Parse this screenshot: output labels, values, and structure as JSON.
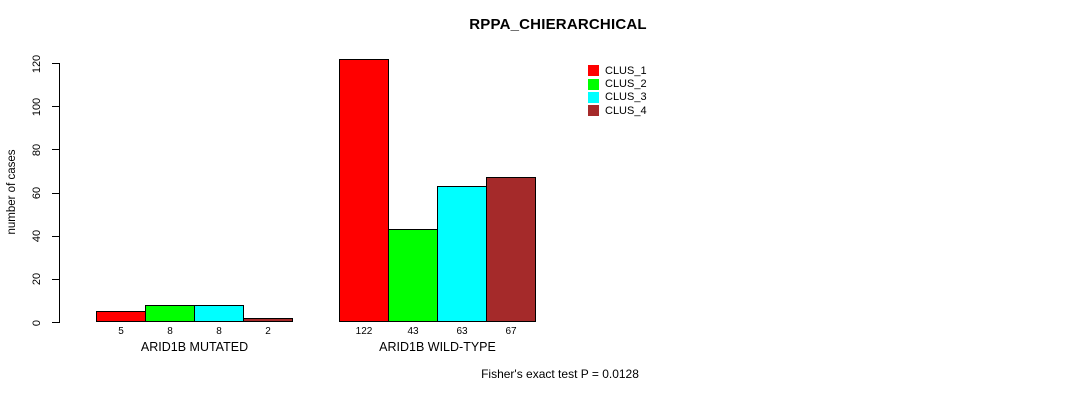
{
  "chart_data": {
    "type": "bar",
    "title": "RPPA_CHIERARCHICAL",
    "ylabel": "number of cases",
    "xlabel": "",
    "yticks": [
      0,
      20,
      40,
      60,
      80,
      100,
      120
    ],
    "ylim": [
      0,
      124
    ],
    "grid": false,
    "legend_position": "top-right",
    "categories": [
      "ARID1B MUTATED",
      "ARID1B WILD-TYPE"
    ],
    "series": [
      {
        "name": "CLUS_1",
        "color": "#FF0000",
        "values": [
          5,
          122
        ]
      },
      {
        "name": "CLUS_2",
        "color": "#00FF00",
        "values": [
          8,
          43
        ]
      },
      {
        "name": "CLUS_3",
        "color": "#00FFFF",
        "values": [
          8,
          63
        ]
      },
      {
        "name": "CLUS_4",
        "color": "#A52A2A",
        "values": [
          2,
          67
        ]
      }
    ],
    "annotation": "Fisher's exact test P = 0.0128",
    "axis_color": "#000000",
    "bar_border_color": "#000000"
  }
}
